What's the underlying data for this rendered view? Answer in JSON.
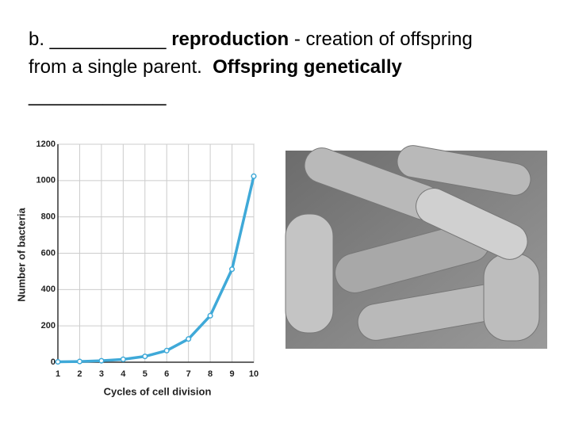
{
  "slide": {
    "lines": [
      [
        {
          "text": "b. ___________ "
        },
        {
          "text": "reproduction",
          "bold": true
        },
        {
          "text": " - creation of offspring"
        }
      ],
      [
        {
          "text": "from a single parent.  "
        },
        {
          "text": "Offspring genetically",
          "bold": true
        }
      ],
      [
        {
          "text": "_____________"
        }
      ]
    ]
  },
  "chart_data": {
    "type": "line",
    "x_label": "Cycles of cell division",
    "y_label": "Number of bacteria",
    "x": [
      1,
      2,
      3,
      4,
      5,
      6,
      7,
      8,
      9,
      10
    ],
    "series": [
      {
        "color": "#3fa9d8",
        "values": [
          2,
          4,
          8,
          16,
          32,
          64,
          128,
          256,
          512,
          1024
        ]
      }
    ],
    "xlim": [
      1,
      10
    ],
    "xticks": [
      1,
      2,
      3,
      4,
      5,
      6,
      7,
      8,
      9,
      10
    ],
    "ylim": [
      0,
      1200
    ],
    "yticks": [
      0,
      200,
      400,
      600,
      800,
      1000,
      1200
    ],
    "grid": true
  }
}
